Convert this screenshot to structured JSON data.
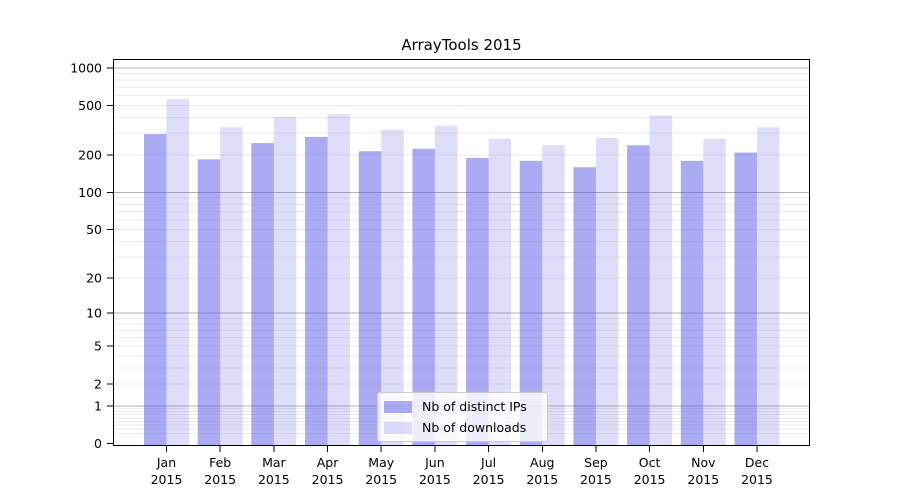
{
  "chart_data": {
    "type": "bar",
    "title": "ArrayTools 2015",
    "categories": [
      "Jan 2015",
      "Feb 2015",
      "Mar 2015",
      "Apr 2015",
      "May 2015",
      "Jun 2015",
      "Jul 2015",
      "Aug 2015",
      "Sep 2015",
      "Oct 2015",
      "Nov 2015",
      "Dec 2015"
    ],
    "series": [
      {
        "name": "Nb of distinct IPs",
        "color": "rgba(88,88,232,0.5)",
        "legend_swatch_color": "rgba(88,88,232,0.5)",
        "values": [
          295,
          185,
          250,
          280,
          215,
          225,
          190,
          180,
          160,
          240,
          180,
          210
        ]
      },
      {
        "name": "Nb of downloads",
        "color": "rgba(88,88,232,0.2)",
        "legend_swatch_color": "rgba(88,88,232,0.2)",
        "values": [
          560,
          335,
          405,
          425,
          320,
          345,
          270,
          240,
          275,
          415,
          270,
          335
        ]
      }
    ],
    "xlabel": "",
    "ylabel": "",
    "y_axis": {
      "scale": "log1p",
      "ylim": [
        0,
        1150
      ],
      "tick_values": [
        1000,
        500,
        200,
        100,
        50,
        20,
        10,
        5,
        2,
        1,
        0
      ],
      "tick_labels": [
        "1000",
        "500",
        "200",
        "100",
        "50",
        "20",
        "10",
        "5",
        "2",
        "1",
        "0"
      ],
      "major_grid_values": [
        1000,
        100,
        10,
        1
      ]
    },
    "grid": "on (log minor + major)",
    "legend": {
      "position": "lower center"
    },
    "colors": {
      "bar_fill_base": "#5858e8",
      "major_grid": "#b2b2b2",
      "minor_grid": "#ebebeb",
      "axis": "#000000"
    }
  }
}
